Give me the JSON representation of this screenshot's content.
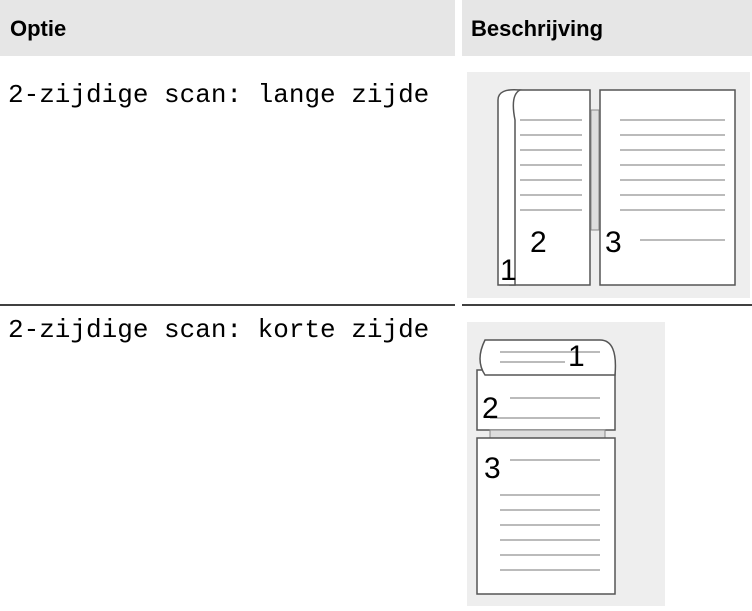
{
  "table": {
    "header": [
      "Optie",
      "Beschrijving"
    ],
    "rows": [
      {
        "option": "2-zijdige scan: lange zijde",
        "image_labels": [
          "1",
          "2",
          "3"
        ]
      },
      {
        "option": "2-zijdige scan: korte zijde",
        "image_labels": [
          "1",
          "2",
          "3"
        ]
      }
    ]
  }
}
